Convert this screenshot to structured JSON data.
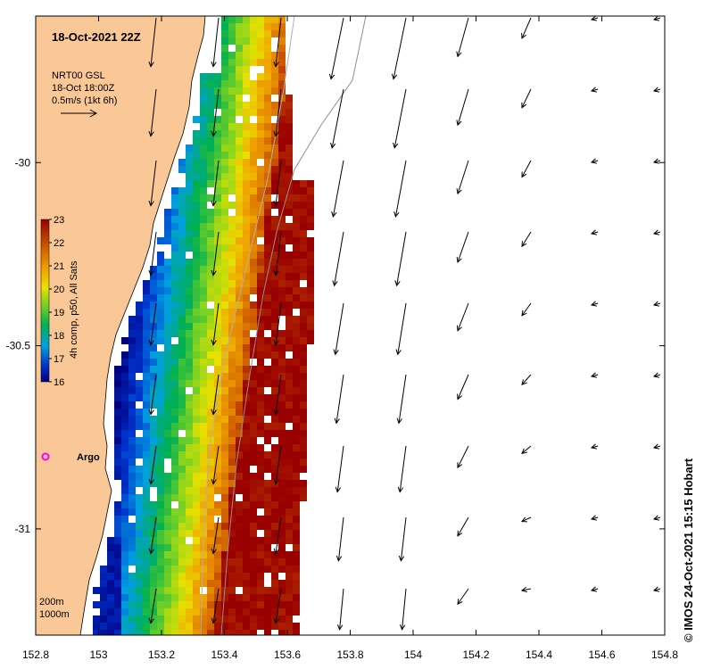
{
  "map": {
    "title": "18-Oct-2021 22Z",
    "current_label": {
      "line1": "NRT00 GSL",
      "line2": "18-Oct 18:00Z",
      "line3": "0.5m/s (1kt 6h)"
    },
    "colorbar": {
      "label": "4h comp, p50, All Sats",
      "min": 16,
      "max": 23,
      "ticks": [
        "16",
        "17",
        "18",
        "19",
        "20",
        "21",
        "22",
        "23"
      ]
    },
    "x_axis": {
      "ticks": [
        "152.8",
        "153",
        "153.2",
        "153.4",
        "153.6",
        "153.8",
        "154",
        "154.2",
        "154.4",
        "154.6",
        "154.8"
      ],
      "range": [
        152.8,
        154.8
      ]
    },
    "y_axis": {
      "ticks": [
        "-30",
        "-30.5",
        "-31"
      ],
      "range": [
        -31.29,
        -29.6
      ]
    },
    "float": {
      "label": "Argo",
      "lon": 152.83,
      "lat": -30.8
    },
    "isobaths": {
      "line1": "200m",
      "line2": "1000m"
    },
    "credit": "© IMOS 24-Oct-2021 15:15 Hobart",
    "colors": {
      "land": "#f9c896",
      "frame": "#000000",
      "float": "#ff00ff",
      "isobath_200": "#aaaaaa",
      "isobath_1000": "#888888"
    }
  }
}
